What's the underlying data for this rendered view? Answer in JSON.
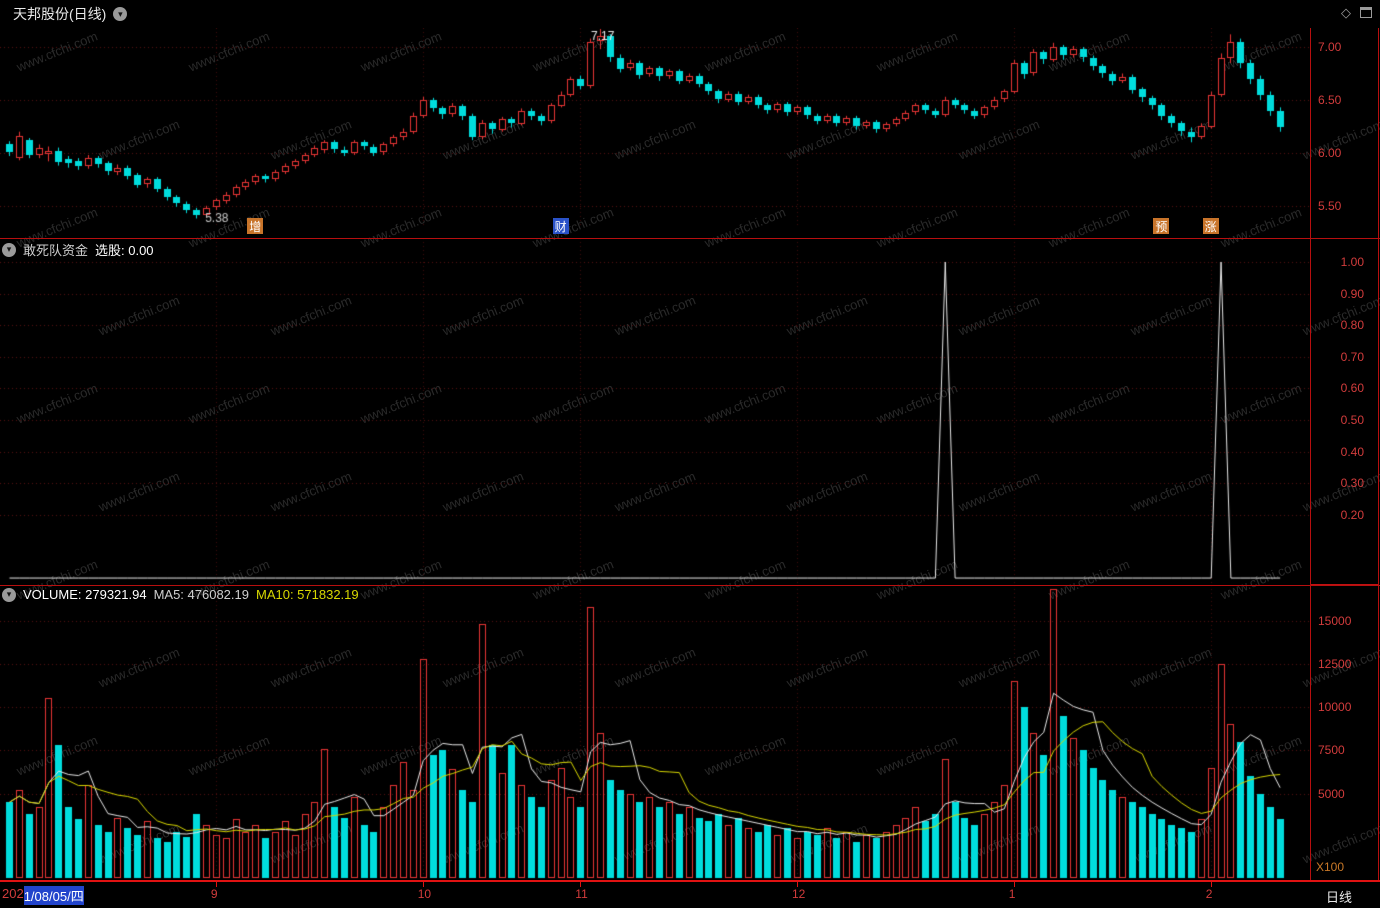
{
  "title_bar": {
    "title": "天邦股份(日线)"
  },
  "panels": {
    "indicator": {
      "name": "敢死队资金",
      "value_label": "选股: 0.00"
    },
    "volume": {
      "volume_label": "VOLUME: 279321.94",
      "ma5_label": "MA5: 476082.19",
      "ma10_label": "MA10: 571832.19",
      "unit_label": "X100"
    }
  },
  "date_axis": {
    "prefix": "202",
    "selected_date": "1/08/05/四",
    "right_label": "日线",
    "months": [
      {
        "label": "9",
        "index": 21
      },
      {
        "label": "10",
        "index": 42
      },
      {
        "label": "11",
        "index": 58
      },
      {
        "label": "12",
        "index": 80
      },
      {
        "label": "1",
        "index": 102
      },
      {
        "label": "2",
        "index": 122
      }
    ]
  },
  "watermark": {
    "text": "www.cfchi.com"
  },
  "colors": {
    "up": "#e83535",
    "down": "#00dddd",
    "axis_text": "#d23c3c",
    "grid": "#5a1010",
    "grid_vertical": "#3f0b0b",
    "separator": "#b80f0f",
    "ma5": "#e8e8e8",
    "ma10": "#d8d800",
    "indicator_line": "#e8e8e8",
    "marker_orange": "#c8742a",
    "marker_blue": "#2a52c8",
    "date_highlight": "#2244cc"
  },
  "chart_data": [
    {
      "type": "candlestick",
      "name": "price",
      "period": "日线",
      "ylim": [
        5.29,
        7.18
      ],
      "yticks": [
        {
          "v": 7.0,
          "label": "7.00"
        },
        {
          "v": 6.5,
          "label": "6.50"
        },
        {
          "v": 6.0,
          "label": "6.00"
        },
        {
          "v": 5.5,
          "label": "5.50"
        }
      ],
      "annotations": {
        "high": {
          "index": 60,
          "label": "7.17"
        },
        "low": {
          "index": 19,
          "label": "5.38"
        }
      },
      "event_markers": [
        {
          "label": "增",
          "index": 25,
          "color_key": "marker_orange"
        },
        {
          "label": "财",
          "index": 56,
          "color_key": "marker_blue"
        },
        {
          "label": "预",
          "index": 117,
          "color_key": "marker_orange"
        },
        {
          "label": "涨",
          "index": 122,
          "color_key": "marker_orange"
        }
      ],
      "candles": [
        [
          6.08,
          6.11,
          5.97,
          6.0
        ],
        [
          5.95,
          6.2,
          5.93,
          6.16
        ],
        [
          6.12,
          6.14,
          5.95,
          5.98
        ],
        [
          5.98,
          6.08,
          5.95,
          6.05
        ],
        [
          5.99,
          6.06,
          5.92,
          6.02
        ],
        [
          6.02,
          6.05,
          5.88,
          5.92
        ],
        [
          5.94,
          5.97,
          5.86,
          5.9
        ],
        [
          5.92,
          5.95,
          5.84,
          5.87
        ],
        [
          5.87,
          5.98,
          5.85,
          5.95
        ],
        [
          5.95,
          5.97,
          5.86,
          5.89
        ],
        [
          5.9,
          5.92,
          5.79,
          5.82
        ],
        [
          5.82,
          5.89,
          5.79,
          5.86
        ],
        [
          5.86,
          5.88,
          5.75,
          5.78
        ],
        [
          5.79,
          5.81,
          5.67,
          5.7
        ],
        [
          5.7,
          5.77,
          5.67,
          5.75
        ],
        [
          5.75,
          5.77,
          5.63,
          5.66
        ],
        [
          5.66,
          5.68,
          5.55,
          5.58
        ],
        [
          5.58,
          5.6,
          5.49,
          5.52
        ],
        [
          5.52,
          5.54,
          5.43,
          5.46
        ],
        [
          5.46,
          5.48,
          5.38,
          5.41
        ],
        [
          5.41,
          5.5,
          5.39,
          5.48
        ],
        [
          5.48,
          5.57,
          5.46,
          5.55
        ],
        [
          5.54,
          5.63,
          5.52,
          5.6
        ],
        [
          5.6,
          5.7,
          5.58,
          5.68
        ],
        [
          5.67,
          5.75,
          5.65,
          5.72
        ],
        [
          5.72,
          5.8,
          5.7,
          5.78
        ],
        [
          5.78,
          5.8,
          5.72,
          5.75
        ],
        [
          5.75,
          5.84,
          5.73,
          5.82
        ],
        [
          5.82,
          5.9,
          5.8,
          5.88
        ],
        [
          5.87,
          5.94,
          5.85,
          5.92
        ],
        [
          5.92,
          6.0,
          5.9,
          5.98
        ],
        [
          5.98,
          6.07,
          5.96,
          6.05
        ],
        [
          6.02,
          6.12,
          6.0,
          6.1
        ],
        [
          6.1,
          6.12,
          6.0,
          6.03
        ],
        [
          6.03,
          6.06,
          5.97,
          6.0
        ],
        [
          6.0,
          6.12,
          5.98,
          6.1
        ],
        [
          6.1,
          6.12,
          6.03,
          6.06
        ],
        [
          6.06,
          6.08,
          5.97,
          6.0
        ],
        [
          6.0,
          6.1,
          5.98,
          6.08
        ],
        [
          6.08,
          6.17,
          6.06,
          6.15
        ],
        [
          6.15,
          6.23,
          6.12,
          6.2
        ],
        [
          6.2,
          6.38,
          6.18,
          6.35
        ],
        [
          6.35,
          6.53,
          6.33,
          6.5
        ],
        [
          6.5,
          6.52,
          6.39,
          6.42
        ],
        [
          6.42,
          6.44,
          6.32,
          6.36
        ],
        [
          6.36,
          6.47,
          6.34,
          6.44
        ],
        [
          6.44,
          6.46,
          6.31,
          6.35
        ],
        [
          6.35,
          6.37,
          6.12,
          6.15
        ],
        [
          6.15,
          6.31,
          6.13,
          6.28
        ],
        [
          6.28,
          6.3,
          6.18,
          6.22
        ],
        [
          6.22,
          6.34,
          6.2,
          6.32
        ],
        [
          6.32,
          6.34,
          6.24,
          6.28
        ],
        [
          6.28,
          6.42,
          6.26,
          6.4
        ],
        [
          6.4,
          6.42,
          6.31,
          6.35
        ],
        [
          6.35,
          6.37,
          6.26,
          6.3
        ],
        [
          6.3,
          6.47,
          6.28,
          6.45
        ],
        [
          6.45,
          6.58,
          6.43,
          6.55
        ],
        [
          6.55,
          6.72,
          6.53,
          6.7
        ],
        [
          6.7,
          6.73,
          6.6,
          6.63
        ],
        [
          6.63,
          7.08,
          6.61,
          7.05
        ],
        [
          7.05,
          7.17,
          6.98,
          7.1
        ],
        [
          7.1,
          7.12,
          6.86,
          6.9
        ],
        [
          6.9,
          6.93,
          6.76,
          6.8
        ],
        [
          6.8,
          6.88,
          6.78,
          6.85
        ],
        [
          6.85,
          6.87,
          6.7,
          6.74
        ],
        [
          6.74,
          6.82,
          6.72,
          6.8
        ],
        [
          6.8,
          6.82,
          6.68,
          6.72
        ],
        [
          6.72,
          6.79,
          6.7,
          6.77
        ],
        [
          6.77,
          6.79,
          6.65,
          6.68
        ],
        [
          6.68,
          6.75,
          6.66,
          6.73
        ],
        [
          6.73,
          6.75,
          6.62,
          6.65
        ],
        [
          6.65,
          6.67,
          6.55,
          6.58
        ],
        [
          6.58,
          6.6,
          6.47,
          6.5
        ],
        [
          6.5,
          6.58,
          6.48,
          6.56
        ],
        [
          6.56,
          6.58,
          6.45,
          6.48
        ],
        [
          6.48,
          6.55,
          6.46,
          6.53
        ],
        [
          6.53,
          6.55,
          6.42,
          6.45
        ],
        [
          6.45,
          6.47,
          6.37,
          6.4
        ],
        [
          6.4,
          6.48,
          6.38,
          6.46
        ],
        [
          6.46,
          6.48,
          6.35,
          6.38
        ],
        [
          6.38,
          6.45,
          6.36,
          6.43
        ],
        [
          6.43,
          6.45,
          6.32,
          6.35
        ],
        [
          6.35,
          6.37,
          6.27,
          6.3
        ],
        [
          6.3,
          6.37,
          6.28,
          6.35
        ],
        [
          6.35,
          6.37,
          6.25,
          6.28
        ],
        [
          6.28,
          6.35,
          6.26,
          6.33
        ],
        [
          6.33,
          6.35,
          6.22,
          6.25
        ],
        [
          6.25,
          6.31,
          6.23,
          6.29
        ],
        [
          6.29,
          6.31,
          6.19,
          6.22
        ],
        [
          6.22,
          6.29,
          6.2,
          6.27
        ],
        [
          6.27,
          6.34,
          6.25,
          6.32
        ],
        [
          6.32,
          6.4,
          6.3,
          6.38
        ],
        [
          6.38,
          6.47,
          6.36,
          6.45
        ],
        [
          6.45,
          6.47,
          6.37,
          6.4
        ],
        [
          6.4,
          6.42,
          6.33,
          6.36
        ],
        [
          6.36,
          6.53,
          6.34,
          6.5
        ],
        [
          6.5,
          6.52,
          6.42,
          6.45
        ],
        [
          6.45,
          6.47,
          6.37,
          6.4
        ],
        [
          6.4,
          6.42,
          6.32,
          6.35
        ],
        [
          6.35,
          6.45,
          6.33,
          6.43
        ],
        [
          6.43,
          6.53,
          6.41,
          6.5
        ],
        [
          6.5,
          6.6,
          6.48,
          6.58
        ],
        [
          6.58,
          6.88,
          6.56,
          6.85
        ],
        [
          6.85,
          6.87,
          6.7,
          6.75
        ],
        [
          6.75,
          6.98,
          6.73,
          6.95
        ],
        [
          6.95,
          6.97,
          6.84,
          6.88
        ],
        [
          6.88,
          7.04,
          6.86,
          7.0
        ],
        [
          7.0,
          7.02,
          6.88,
          6.92
        ],
        [
          6.92,
          7.01,
          6.9,
          6.98
        ],
        [
          6.98,
          7.0,
          6.86,
          6.9
        ],
        [
          6.9,
          6.92,
          6.78,
          6.82
        ],
        [
          6.82,
          6.84,
          6.71,
          6.75
        ],
        [
          6.75,
          6.77,
          6.64,
          6.68
        ],
        [
          6.68,
          6.75,
          6.66,
          6.72
        ],
        [
          6.72,
          6.74,
          6.56,
          6.6
        ],
        [
          6.6,
          6.62,
          6.48,
          6.52
        ],
        [
          6.52,
          6.54,
          6.41,
          6.45
        ],
        [
          6.45,
          6.47,
          6.31,
          6.35
        ],
        [
          6.35,
          6.37,
          6.24,
          6.28
        ],
        [
          6.28,
          6.3,
          6.16,
          6.2
        ],
        [
          6.2,
          6.24,
          6.1,
          6.15
        ],
        [
          6.15,
          6.28,
          6.13,
          6.25
        ],
        [
          6.25,
          6.58,
          6.23,
          6.55
        ],
        [
          6.55,
          6.94,
          6.53,
          6.9
        ],
        [
          6.9,
          7.12,
          6.85,
          7.05
        ],
        [
          7.05,
          7.08,
          6.8,
          6.85
        ],
        [
          6.85,
          6.88,
          6.65,
          6.7
        ],
        [
          6.7,
          6.73,
          6.5,
          6.55
        ],
        [
          6.55,
          6.58,
          6.35,
          6.4
        ],
        [
          6.4,
          6.43,
          6.2,
          6.25
        ]
      ]
    },
    {
      "type": "line",
      "name": "敢死队资金",
      "value_label": "选股: 0.00",
      "ylim": [
        -0.022,
        1.076
      ],
      "yticks": [
        {
          "v": 1.0,
          "label": "1.00"
        },
        {
          "v": 0.9,
          "label": "0.90"
        },
        {
          "v": 0.8,
          "label": "0.80"
        },
        {
          "v": 0.7,
          "label": "0.70"
        },
        {
          "v": 0.6,
          "label": "0.60"
        },
        {
          "v": 0.5,
          "label": "0.50"
        },
        {
          "v": 0.4,
          "label": "0.40"
        },
        {
          "v": 0.3,
          "label": "0.30"
        },
        {
          "v": 0.2,
          "label": "0.20"
        }
      ],
      "base_value": 0,
      "length": 130,
      "spikes": [
        {
          "index": 95,
          "value": 1.0
        },
        {
          "index": 123,
          "value": 1.0
        }
      ]
    },
    {
      "type": "bar",
      "name": "VOLUME",
      "unit": "X100",
      "ylim": [
        0,
        17060
      ],
      "yticks": [
        {
          "v": 15000,
          "label": "15000"
        },
        {
          "v": 12500,
          "label": "12500"
        },
        {
          "v": 10000,
          "label": "10000"
        },
        {
          "v": 7500,
          "label": "7500"
        },
        {
          "v": 5000,
          "label": "5000"
        }
      ],
      "values": [
        4500,
        5200,
        3800,
        4200,
        10500,
        7800,
        4200,
        3500,
        5500,
        3200,
        2800,
        3600,
        3000,
        2600,
        3400,
        2400,
        2200,
        2800,
        2500,
        3800,
        3200,
        2600,
        2400,
        3500,
        2800,
        3200,
        2400,
        2800,
        3400,
        2600,
        3800,
        4500,
        7600,
        4200,
        3600,
        4800,
        3200,
        2800,
        4200,
        5500,
        6800,
        5200,
        12800,
        7200,
        7500,
        6400,
        5200,
        4500,
        14800,
        7800,
        6200,
        7800,
        5500,
        4800,
        4200,
        5800,
        6500,
        4800,
        4200,
        15800,
        8500,
        5800,
        5200,
        5000,
        4500,
        4800,
        4200,
        4500,
        3800,
        4200,
        3600,
        3400,
        3800,
        3200,
        3600,
        3000,
        2800,
        3200,
        2600,
        3000,
        2400,
        2800,
        2600,
        3000,
        2400,
        2800,
        2200,
        2600,
        2400,
        2800,
        3200,
        3600,
        4200,
        3400,
        3800,
        7000,
        4500,
        3600,
        3200,
        3800,
        4500,
        5500,
        11500,
        10000,
        8500,
        7200,
        16800,
        9500,
        8200,
        7500,
        6500,
        5800,
        5200,
        4800,
        4500,
        4200,
        3800,
        3500,
        3200,
        3000,
        2800,
        3500,
        6500,
        12500,
        9000,
        8000,
        6000,
        5000,
        4200,
        3500
      ],
      "ma": [
        {
          "name": "MA5",
          "window": 5,
          "color_key": "ma5"
        },
        {
          "name": "MA10",
          "window": 10,
          "color_key": "ma10"
        }
      ]
    }
  ]
}
